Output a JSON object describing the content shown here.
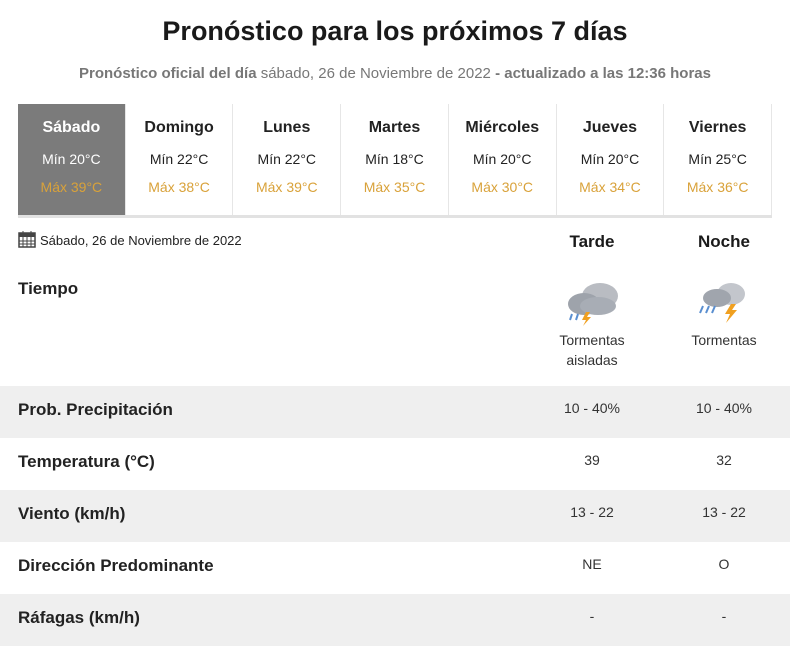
{
  "header": {
    "title": "Pronóstico para los próximos 7 días",
    "subtitle": {
      "lead": "Pronóstico oficial del día",
      "date": "sábado, 26 de Noviembre de 2022",
      "updated": "- actualizado a las 12:36 horas"
    }
  },
  "days": [
    {
      "name": "Sábado",
      "min": "Mín 20°C",
      "max": "Máx 39°C"
    },
    {
      "name": "Domingo",
      "min": "Mín 22°C",
      "max": "Máx 38°C"
    },
    {
      "name": "Lunes",
      "min": "Mín 22°C",
      "max": "Máx 39°C"
    },
    {
      "name": "Martes",
      "min": "Mín 18°C",
      "max": "Máx 35°C"
    },
    {
      "name": "Miércoles",
      "min": "Mín 20°C",
      "max": "Máx 30°C"
    },
    {
      "name": "Jueves",
      "min": "Mín 20°C",
      "max": "Máx 34°C"
    },
    {
      "name": "Viernes",
      "min": "Mín 25°C",
      "max": "Máx 36°C"
    }
  ],
  "detail": {
    "date": "Sábado, 26 de Noviembre de 2022",
    "columns": [
      "Tarde",
      "Noche"
    ],
    "weather": {
      "label": "Tiempo",
      "values": [
        "Tormentas aisladas",
        "Tormentas"
      ]
    },
    "rows": [
      {
        "label": "Prob. Precipitación",
        "values": [
          "10 - 40%",
          "10 - 40%"
        ]
      },
      {
        "label": "Temperatura (°C)",
        "values": [
          "39",
          "32"
        ]
      },
      {
        "label": "Viento (km/h)",
        "values": [
          "13 - 22",
          "13 - 22"
        ]
      },
      {
        "label": "Dirección Predominante",
        "values": [
          "NE",
          "O"
        ]
      },
      {
        "label": "Ráfagas (km/h)",
        "values": [
          "-",
          "-"
        ]
      }
    ]
  }
}
